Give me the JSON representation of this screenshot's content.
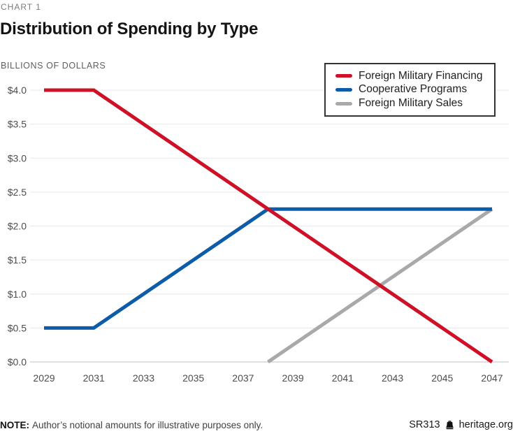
{
  "header": {
    "eyebrow": "CHART 1",
    "title": "Distribution of Spending by Type",
    "axis_unit_label": "BILLIONS OF DOLLARS"
  },
  "legend": {
    "position": "top-right",
    "entries": [
      {
        "label": "Foreign Military Financing",
        "color": "#ce1126"
      },
      {
        "label": "Cooperative Programs",
        "color": "#0d5ca8"
      },
      {
        "label": "Foreign Military Sales",
        "color": "#a7a9ab"
      }
    ]
  },
  "footer": {
    "note_label": "NOTE:",
    "note_text": "Author’s notional amounts for illustrative purposes only.",
    "report_id": "SR313",
    "brand_icon": "liberty-bell-icon",
    "brand": "heritage.org"
  },
  "chart_data": {
    "type": "line",
    "title": "Distribution of Spending by Type",
    "xlabel": "",
    "ylabel": "BILLIONS OF DOLLARS",
    "xlim": [
      2029,
      2047
    ],
    "ylim": [
      0,
      4
    ],
    "x_ticks": [
      2029,
      2031,
      2033,
      2035,
      2037,
      2039,
      2041,
      2043,
      2045,
      2047
    ],
    "y_ticks": [
      0,
      0.5,
      1.0,
      1.5,
      2.0,
      2.5,
      3.0,
      3.5,
      4.0
    ],
    "y_tick_prefix": "$",
    "y_tick_decimals": 1,
    "grid": true,
    "gridline_color": "#e9e9e9",
    "zero_line_color": "#bfbfbf",
    "legend_position": "top-right",
    "series": [
      {
        "name": "Foreign Military Financing",
        "color": "#ce1126",
        "points": [
          [
            2029,
            4.0
          ],
          [
            2031,
            4.0
          ],
          [
            2047,
            0.0
          ]
        ]
      },
      {
        "name": "Cooperative Programs",
        "color": "#0d5ca8",
        "points": [
          [
            2029,
            0.5
          ],
          [
            2031,
            0.5
          ],
          [
            2038,
            2.25
          ],
          [
            2047,
            2.25
          ]
        ]
      },
      {
        "name": "Foreign Military Sales",
        "color": "#a7a9ab",
        "points": [
          [
            2038,
            0.0
          ],
          [
            2047,
            2.25
          ]
        ]
      }
    ]
  }
}
